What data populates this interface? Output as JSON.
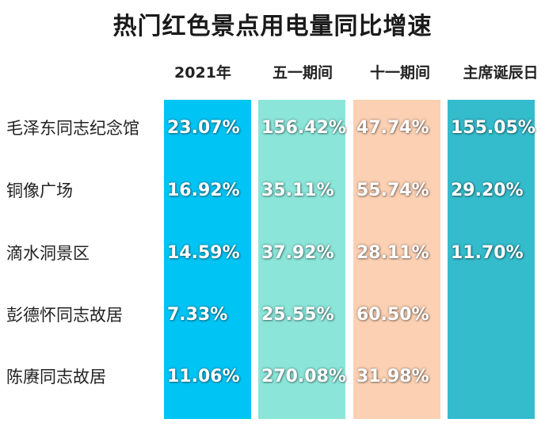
{
  "chart_data": {
    "type": "table",
    "title": "热门红色景点用电量同比增速",
    "columns": [
      "2021年",
      "五一期间",
      "十一期间",
      "主席诞辰日"
    ],
    "rows": [
      {
        "label": "毛泽东同志纪念馆",
        "values": [
          "23.07%",
          "156.42%",
          "47.74%",
          "155.05%"
        ]
      },
      {
        "label": "铜像广场",
        "values": [
          "16.92%",
          "35.11%",
          "55.74%",
          "29.20%"
        ]
      },
      {
        "label": "滴水洞景区",
        "values": [
          "14.59%",
          "37.92%",
          "28.11%",
          "11.70%"
        ]
      },
      {
        "label": "彭德怀同志故居",
        "values": [
          "7.33%",
          "25.55%",
          "60.50%",
          null
        ]
      },
      {
        "label": "陈赓同志故居",
        "values": [
          "11.06%",
          "270.08%",
          "31.98%",
          null
        ]
      }
    ],
    "column_colors": [
      "#00c4f4",
      "#8be5d9",
      "#fbd0b3",
      "#34bccd"
    ]
  }
}
